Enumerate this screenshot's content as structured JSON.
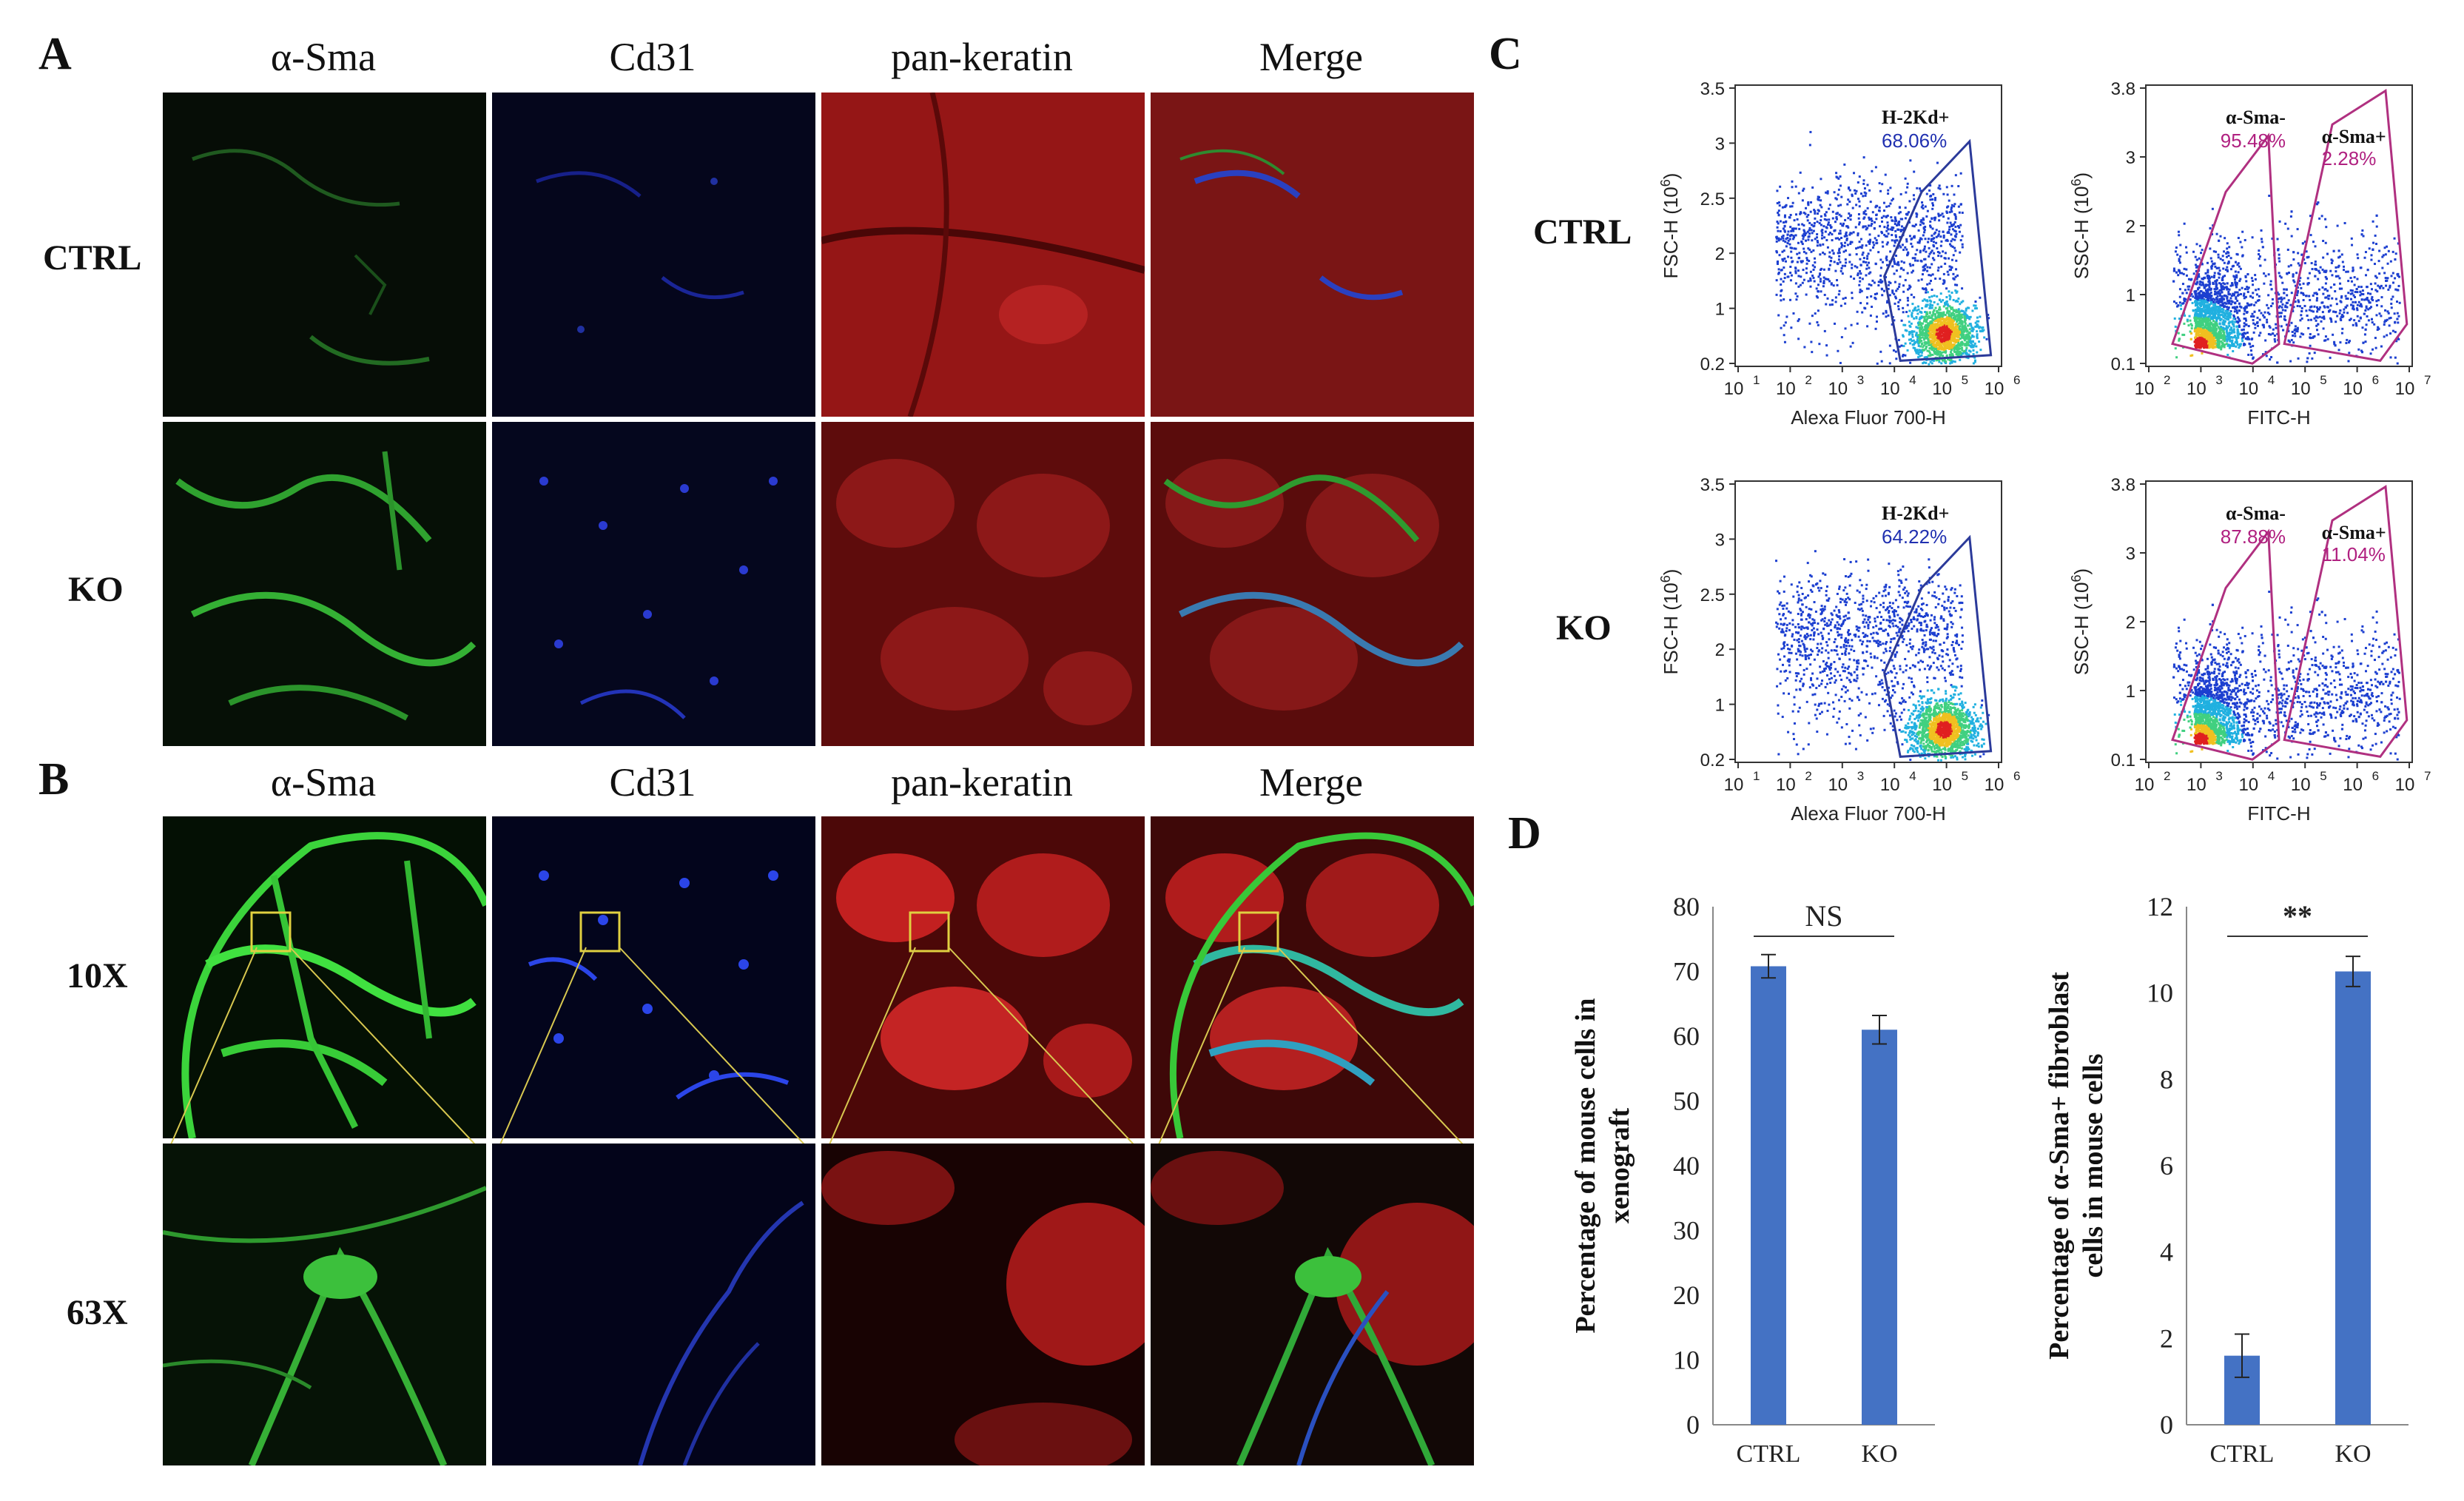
{
  "panels": {
    "A": {
      "letter": "A",
      "columns": [
        "α-Sma",
        "Cd31",
        "pan-keratin",
        "Merge"
      ],
      "rows": [
        "CTRL",
        "KO"
      ]
    },
    "B": {
      "letter": "B",
      "columns": [
        "α-Sma",
        "Cd31",
        "pan-keratin",
        "Merge"
      ],
      "rows": [
        "10X",
        "63X"
      ]
    },
    "C": {
      "letter": "C",
      "rows": [
        "CTRL",
        "KO"
      ],
      "left_plot": {
        "xlabel": "Alexa Fluor 700-H",
        "ylabel": "FSC-H (10",
        "ylabel_exp": "6",
        "ylabel_end": ")",
        "yticks": [
          "0.2",
          "1",
          "2",
          "2.5",
          "3",
          "3.5"
        ],
        "xticks": [
          {
            "b": "10",
            "e": "1"
          },
          {
            "b": "10",
            "e": "2"
          },
          {
            "b": "10",
            "e": "3"
          },
          {
            "b": "10",
            "e": "4"
          },
          {
            "b": "10",
            "e": "5"
          },
          {
            "b": "10",
            "e": "6"
          }
        ],
        "gate_label": "H-2Kd+",
        "gate_values": [
          "68.06%",
          "64.22%"
        ]
      },
      "right_plot": {
        "xlabel": "FITC-H",
        "ylabel": "SSC-H (10",
        "ylabel_exp": "6",
        "ylabel_end": ")",
        "yticks": [
          "0.1",
          "1",
          "2",
          "3",
          "3.8"
        ],
        "xticks": [
          {
            "b": "10",
            "e": "2"
          },
          {
            "b": "10",
            "e": "3"
          },
          {
            "b": "10",
            "e": "4"
          },
          {
            "b": "10",
            "e": "5"
          },
          {
            "b": "10",
            "e": "6"
          },
          {
            "b": "10",
            "e": "7"
          }
        ],
        "neg_label": "α-Sma-",
        "pos_label": "α-Sma+",
        "neg_values": [
          "95.48%",
          "87.88%"
        ],
        "pos_values": [
          "2.28%",
          "11.04%"
        ]
      }
    },
    "D": {
      "letter": "D"
    }
  },
  "chart_data": [
    {
      "type": "bar",
      "categories": [
        "CTRL",
        "KO"
      ],
      "values": [
        70.8,
        61.0
      ],
      "errors": [
        1.8,
        2.2
      ],
      "ylabel": "Percentage  of mouse cells in xenograft",
      "ylabel_lines": [
        "Percentage  of mouse cells in",
        "xenograft"
      ],
      "ylim": [
        0,
        80
      ],
      "yticks": [
        "0",
        "10",
        "20",
        "30",
        "40",
        "50",
        "60",
        "70",
        "80"
      ],
      "significance": "NS",
      "bar_color": "#4472c4"
    },
    {
      "type": "bar",
      "categories": [
        "CTRL",
        "KO"
      ],
      "values": [
        1.6,
        10.5
      ],
      "errors": [
        0.5,
        0.35
      ],
      "ylabel": "Percentage of α-Sma+ fibroblast cells in mouse cells",
      "ylabel_lines": [
        "Percentage of α-Sma+ fibroblast",
        "cells in mouse cells"
      ],
      "ylim": [
        0,
        12
      ],
      "yticks": [
        "0",
        "2",
        "4",
        "6",
        "8",
        "10",
        "12"
      ],
      "significance": "**",
      "bar_color": "#4472c4"
    }
  ]
}
